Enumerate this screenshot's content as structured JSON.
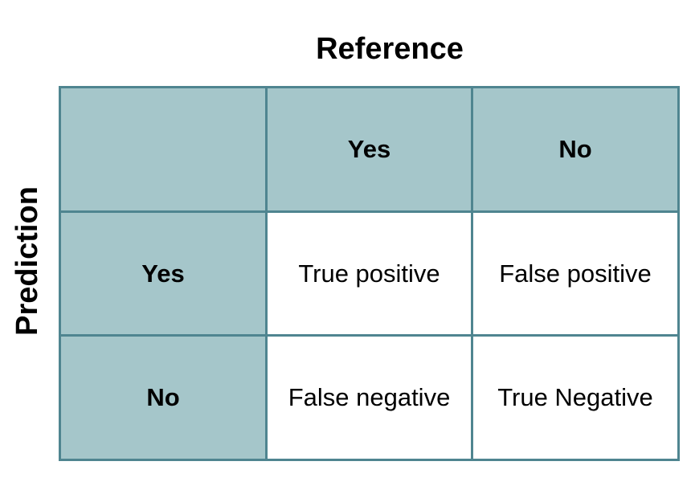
{
  "column_axis_title": "Reference",
  "row_axis_title": "Prediction",
  "column_headers": [
    "Yes",
    "No"
  ],
  "row_headers": [
    "Yes",
    "No"
  ],
  "cells": [
    [
      "True positive",
      "False positive"
    ],
    [
      "False negative",
      "True Negative"
    ]
  ],
  "colors": {
    "header_fill": "#a5c6ca",
    "border": "#4f8590",
    "cell_fill": "#ffffff"
  }
}
